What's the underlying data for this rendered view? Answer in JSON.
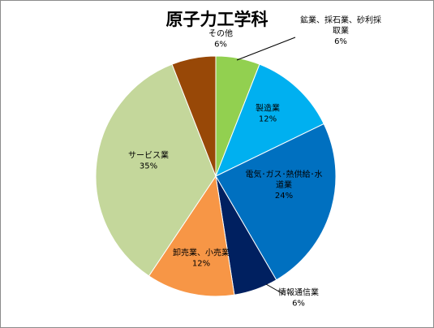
{
  "chart_data": {
    "type": "pie",
    "title": "原子力工学科",
    "start_angle_deg": 0,
    "direction": "clockwise",
    "slices": [
      {
        "name": "鉱業、採石業、砂利採取業",
        "label_lines": [
          "鉱業、採石業、砂利採",
          "取業"
        ],
        "value": 6,
        "value_label": "6%",
        "color": "#92d050"
      },
      {
        "name": "製造業",
        "label_lines": [
          "製造業"
        ],
        "value": 12,
        "value_label": "12%",
        "color": "#00b0f0"
      },
      {
        "name": "電気・ガス・熱供給・水道業",
        "label_lines": [
          "電気･ガス･熱供給･水",
          "道業"
        ],
        "value": 24,
        "value_label": "24%",
        "color": "#0070c0"
      },
      {
        "name": "情報通信業",
        "label_lines": [
          "情報通信業"
        ],
        "value": 6,
        "value_label": "6%",
        "color": "#002060"
      },
      {
        "name": "卸売業、小売業",
        "label_lines": [
          "卸売業、小売業"
        ],
        "value": 12,
        "value_label": "12%",
        "color": "#f79646"
      },
      {
        "name": "サービス業",
        "label_lines": [
          "サービス業"
        ],
        "value": 35,
        "value_label": "35%",
        "color": "#c4d79b"
      },
      {
        "name": "その他",
        "label_lines": [
          "その他"
        ],
        "value": 6,
        "value_label": "6%",
        "color": "#984807"
      }
    ]
  }
}
